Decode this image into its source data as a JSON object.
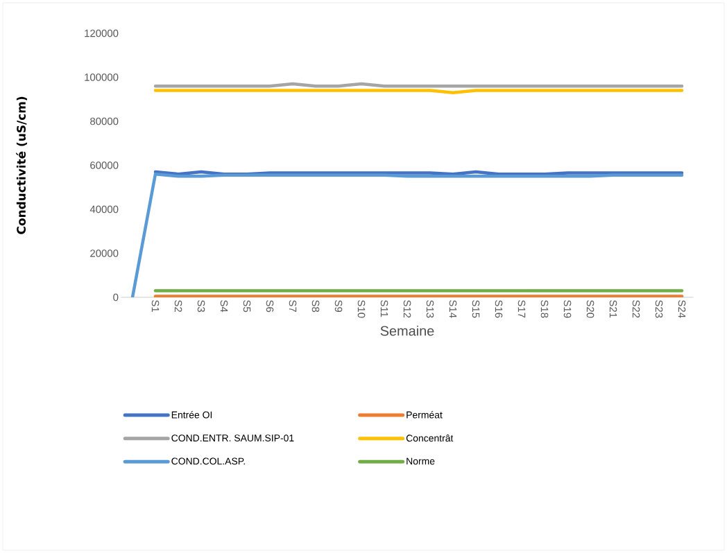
{
  "chart_data": {
    "type": "line",
    "xlabel": "Semaine",
    "ylabel": "Conductivité (uS/cm)",
    "categories": [
      null,
      "S1",
      "S2",
      "S3",
      "S4",
      "S5",
      "S6",
      "S7",
      "S8",
      "S9",
      "S10",
      "S11",
      "S12",
      "S13",
      "S14",
      "S15",
      "S16",
      "S17",
      "S18",
      "S19",
      "S20",
      "S21",
      "S22",
      "S23",
      "S24"
    ],
    "ylim": [
      0,
      120000
    ],
    "yticks": [
      0,
      20000,
      40000,
      60000,
      80000,
      100000,
      120000
    ],
    "legend": "bottom",
    "marker": "none",
    "line_style": "solid",
    "grid": false,
    "series": [
      {
        "name": "Entrée OI",
        "color": "#4472c4",
        "values": [
          null,
          57000,
          56000,
          57000,
          56000,
          56000,
          56500,
          56500,
          56500,
          56500,
          56500,
          56500,
          56500,
          56500,
          56000,
          57000,
          56000,
          56000,
          56000,
          56500,
          56500,
          56500,
          56500,
          56500,
          56500
        ]
      },
      {
        "name": "Perméat",
        "color": "#ed7d31",
        "values": [
          null,
          500,
          500,
          500,
          500,
          500,
          500,
          500,
          500,
          500,
          500,
          500,
          500,
          500,
          500,
          500,
          500,
          500,
          500,
          500,
          500,
          500,
          500,
          500,
          500
        ]
      },
      {
        "name": "COND.ENTR.  SAUM.SIP-01",
        "color": "#a5a5a5",
        "values": [
          null,
          96000,
          96000,
          96000,
          96000,
          96000,
          96000,
          97000,
          96000,
          96000,
          97000,
          96000,
          96000,
          96000,
          96000,
          96000,
          96000,
          96000,
          96000,
          96000,
          96000,
          96000,
          96000,
          96000,
          96000
        ]
      },
      {
        "name": "Concentrât",
        "color": "#ffc000",
        "values": [
          null,
          94000,
          94000,
          94000,
          94000,
          94000,
          94000,
          94000,
          94000,
          94000,
          94000,
          94000,
          94000,
          94000,
          93000,
          94000,
          94000,
          94000,
          94000,
          94000,
          94000,
          94000,
          94000,
          94000,
          94000
        ]
      },
      {
        "name": "COND.COL.ASP.",
        "color": "#5b9bd5",
        "values": [
          0,
          56000,
          55000,
          55000,
          55500,
          55500,
          55500,
          55500,
          55500,
          55500,
          55500,
          55500,
          55000,
          55000,
          55000,
          55000,
          55000,
          55000,
          55000,
          55000,
          55000,
          55500,
          55500,
          55500,
          55500
        ]
      },
      {
        "name": "Norme",
        "color": "#70ad47",
        "values": [
          null,
          3000,
          3000,
          3000,
          3000,
          3000,
          3000,
          3000,
          3000,
          3000,
          3000,
          3000,
          3000,
          3000,
          3000,
          3000,
          3000,
          3000,
          3000,
          3000,
          3000,
          3000,
          3000,
          3000,
          3000
        ]
      }
    ]
  }
}
